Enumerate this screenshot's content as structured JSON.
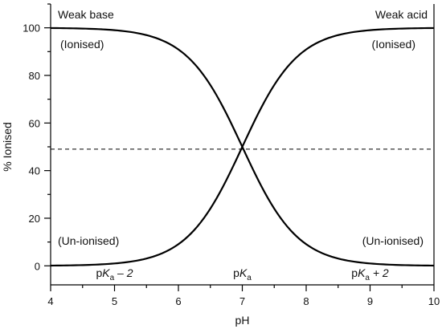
{
  "chart_data": {
    "type": "line",
    "title": "",
    "xlabel": "pH",
    "ylabel": "% Ionised",
    "xlim": [
      4,
      10
    ],
    "ylim": [
      -8,
      110
    ],
    "x_ticks": [
      4,
      5,
      6,
      7,
      8,
      9,
      10
    ],
    "y_ticks": [
      0,
      20,
      40,
      60,
      80,
      100
    ],
    "pKa": 7,
    "grid": false,
    "series": [
      {
        "name": "Weak base",
        "x": [
          4,
          4.5,
          5,
          5.5,
          6,
          6.5,
          7,
          7.5,
          8,
          8.5,
          9,
          9.5,
          10
        ],
        "values": [
          99.9,
          99.7,
          99.0,
          96.9,
          90.9,
          76.0,
          50.0,
          24.0,
          9.1,
          3.1,
          1.0,
          0.3,
          0.1
        ]
      },
      {
        "name": "Weak acid",
        "x": [
          4,
          4.5,
          5,
          5.5,
          6,
          6.5,
          7,
          7.5,
          8,
          8.5,
          9,
          9.5,
          10
        ],
        "values": [
          0.1,
          0.3,
          1.0,
          3.1,
          9.1,
          24.0,
          50.0,
          76.0,
          90.9,
          96.9,
          99.0,
          99.7,
          99.9
        ]
      }
    ],
    "reference_line": {
      "y": 49
    },
    "annotations": {
      "weak_base": "Weak base",
      "weak_acid": "Weak acid",
      "ionised_left": "(Ionised)",
      "ionised_right": "(Ionised)",
      "unionised_left": "(Un-ionised)",
      "unionised_right": "(Un-ionised)"
    },
    "pka_labels": [
      {
        "x": 5,
        "prefix": "p",
        "k": "K",
        "sub": "a",
        "suffix": " – 2"
      },
      {
        "x": 7,
        "prefix": "p",
        "k": "K",
        "sub": "a",
        "suffix": ""
      },
      {
        "x": 9,
        "prefix": "p",
        "k": "K",
        "sub": "a",
        "suffix": " + 2"
      }
    ]
  }
}
